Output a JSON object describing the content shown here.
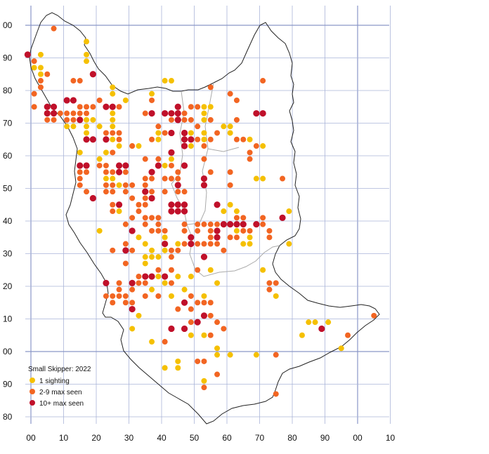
{
  "map": {
    "x_labels": [
      "00",
      "10",
      "20",
      "30",
      "40",
      "50",
      "60",
      "70",
      "80",
      "90",
      "00",
      "10"
    ],
    "y_labels": [
      "00",
      "90",
      "80",
      "70",
      "60",
      "50",
      "40",
      "30",
      "20",
      "10",
      "00",
      "90",
      "80"
    ],
    "legend": {
      "title": "Small Skipper:  2022",
      "items": [
        {
          "label": "1 sighting",
          "color": "#f5c000"
        },
        {
          "label": "2-9 max seen",
          "color": "#f26522"
        },
        {
          "label": "10+ max seen",
          "color": "#c0102a"
        }
      ]
    },
    "colors": {
      "one": "#f5c000",
      "few": "#f26522",
      "many": "#c0102a",
      "grid": "#aab4d8",
      "outline": "#222222",
      "inner_boundary": "#aaaaaa"
    },
    "records": {
      "one": [
        [
          1,
          87
        ],
        [
          3,
          91
        ],
        [
          3,
          87
        ],
        [
          3,
          85
        ],
        [
          17,
          95
        ],
        [
          17,
          91
        ],
        [
          17,
          89
        ],
        [
          15,
          71
        ],
        [
          11,
          69
        ],
        [
          13,
          69
        ],
        [
          19,
          71
        ],
        [
          15,
          61
        ],
        [
          17,
          69
        ],
        [
          17,
          67
        ],
        [
          17,
          71
        ],
        [
          25,
          71
        ],
        [
          25,
          73
        ],
        [
          25,
          69
        ],
        [
          25,
          79
        ],
        [
          25,
          81
        ],
        [
          29,
          77
        ],
        [
          21,
          59
        ],
        [
          23,
          53
        ],
        [
          25,
          53
        ],
        [
          27,
          55
        ],
        [
          25,
          65
        ],
        [
          37,
          79
        ],
        [
          41,
          83
        ],
        [
          43,
          83
        ],
        [
          39,
          67
        ],
        [
          39,
          65
        ],
        [
          43,
          59
        ],
        [
          41,
          57
        ],
        [
          33,
          63
        ],
        [
          31,
          63
        ],
        [
          27,
          63
        ],
        [
          49,
          67
        ],
        [
          49,
          65
        ],
        [
          49,
          63
        ],
        [
          53,
          75
        ],
        [
          55,
          75
        ],
        [
          53,
          73
        ],
        [
          53,
          71
        ],
        [
          53,
          67
        ],
        [
          53,
          65
        ],
        [
          59,
          69
        ],
        [
          61,
          69
        ],
        [
          61,
          67
        ],
        [
          59,
          43
        ],
        [
          61,
          45
        ],
        [
          67,
          65
        ],
        [
          71,
          63
        ],
        [
          69,
          53
        ],
        [
          71,
          53
        ],
        [
          79,
          43
        ],
        [
          79,
          33
        ],
        [
          61,
          39
        ],
        [
          63,
          37
        ],
        [
          65,
          33
        ],
        [
          67,
          33
        ],
        [
          67,
          35
        ],
        [
          63,
          43
        ],
        [
          21,
          37
        ],
        [
          33,
          35
        ],
        [
          35,
          33
        ],
        [
          37,
          31
        ],
        [
          41,
          35
        ],
        [
          41,
          31
        ],
        [
          45,
          33
        ],
        [
          35,
          27
        ],
        [
          35,
          29
        ],
        [
          37,
          29
        ],
        [
          39,
          29
        ],
        [
          41,
          21
        ],
        [
          47,
          19
        ],
        [
          45,
          23
        ],
        [
          49,
          23
        ],
        [
          37,
          19
        ],
        [
          33,
          11
        ],
        [
          31,
          13
        ],
        [
          31,
          7
        ],
        [
          37,
          3
        ],
        [
          41,
          -5
        ],
        [
          45,
          -3
        ],
        [
          45,
          -5
        ],
        [
          53,
          -9
        ],
        [
          49,
          5
        ],
        [
          53,
          5
        ],
        [
          57,
          1
        ],
        [
          57,
          -1
        ],
        [
          61,
          -1
        ],
        [
          69,
          -1
        ],
        [
          71,
          25
        ],
        [
          85,
          9
        ],
        [
          87,
          9
        ],
        [
          91,
          9
        ],
        [
          95,
          1
        ],
        [
          83,
          5
        ],
        [
          43,
          17
        ],
        [
          53,
          17
        ],
        [
          75,
          17
        ],
        [
          23,
          61
        ],
        [
          27,
          51
        ],
        [
          27,
          43
        ],
        [
          21,
          69
        ],
        [
          55,
          25
        ],
        [
          57,
          21
        ],
        [
          39,
          23
        ]
      ],
      "few": [
        [
          5,
          85
        ],
        [
          3,
          83
        ],
        [
          3,
          81
        ],
        [
          1,
          79
        ],
        [
          1,
          75
        ],
        [
          5,
          75
        ],
        [
          5,
          73
        ],
        [
          5,
          71
        ],
        [
          7,
          71
        ],
        [
          9,
          73
        ],
        [
          11,
          73
        ],
        [
          13,
          73
        ],
        [
          15,
          73
        ],
        [
          11,
          71
        ],
        [
          13,
          71
        ],
        [
          15,
          75
        ],
        [
          17,
          73
        ],
        [
          17,
          75
        ],
        [
          19,
          75
        ],
        [
          7,
          99
        ],
        [
          13,
          83
        ],
        [
          15,
          83
        ],
        [
          1,
          89
        ],
        [
          21,
          77
        ],
        [
          25,
          75
        ],
        [
          27,
          75
        ],
        [
          23,
          67
        ],
        [
          25,
          67
        ],
        [
          27,
          67
        ],
        [
          15,
          57
        ],
        [
          15,
          55
        ],
        [
          15,
          53
        ],
        [
          17,
          49
        ],
        [
          23,
          57
        ],
        [
          25,
          55
        ],
        [
          23,
          55
        ],
        [
          23,
          51
        ],
        [
          23,
          49
        ],
        [
          25,
          51
        ],
        [
          25,
          49
        ],
        [
          25,
          61
        ],
        [
          29,
          55
        ],
        [
          29,
          51
        ],
        [
          29,
          49
        ],
        [
          31,
          51
        ],
        [
          31,
          47
        ],
        [
          25,
          43
        ],
        [
          25,
          45
        ],
        [
          29,
          39
        ],
        [
          31,
          41
        ],
        [
          33,
          43
        ],
        [
          35,
          41
        ],
        [
          37,
          41
        ],
        [
          31,
          37
        ],
        [
          35,
          39
        ],
        [
          39,
          39
        ],
        [
          39,
          41
        ],
        [
          37,
          37
        ],
        [
          39,
          37
        ],
        [
          41,
          37
        ],
        [
          35,
          47
        ],
        [
          33,
          45
        ],
        [
          35,
          45
        ],
        [
          37,
          47
        ],
        [
          37,
          49
        ],
        [
          35,
          51
        ],
        [
          35,
          53
        ],
        [
          37,
          53
        ],
        [
          35,
          59
        ],
        [
          39,
          59
        ],
        [
          41,
          53
        ],
        [
          43,
          53
        ],
        [
          45,
          53
        ],
        [
          43,
          57
        ],
        [
          45,
          55
        ],
        [
          41,
          49
        ],
        [
          45,
          49
        ],
        [
          47,
          49
        ],
        [
          37,
          73
        ],
        [
          37,
          77
        ],
        [
          35,
          73
        ],
        [
          31,
          63
        ],
        [
          37,
          65
        ],
        [
          41,
          67
        ],
        [
          39,
          69
        ],
        [
          43,
          71
        ],
        [
          43,
          73
        ],
        [
          47,
          73
        ],
        [
          47,
          71
        ],
        [
          49,
          71
        ],
        [
          49,
          75
        ],
        [
          51,
          75
        ],
        [
          51,
          69
        ],
        [
          55,
          71
        ],
        [
          51,
          65
        ],
        [
          53,
          63
        ],
        [
          55,
          55
        ],
        [
          53,
          59
        ],
        [
          55,
          65
        ],
        [
          57,
          67
        ],
        [
          55,
          81
        ],
        [
          61,
          79
        ],
        [
          63,
          77
        ],
        [
          63,
          71
        ],
        [
          63,
          65
        ],
        [
          65,
          65
        ],
        [
          61,
          55
        ],
        [
          67,
          59
        ],
        [
          61,
          51
        ],
        [
          71,
          83
        ],
        [
          69,
          63
        ],
        [
          67,
          61
        ],
        [
          77,
          53
        ],
        [
          71,
          41
        ],
        [
          71,
          39
        ],
        [
          73,
          37
        ],
        [
          73,
          35
        ],
        [
          57,
          39
        ],
        [
          59,
          39
        ],
        [
          55,
          39
        ],
        [
          53,
          39
        ],
        [
          51,
          39
        ],
        [
          51,
          37
        ],
        [
          49,
          35
        ],
        [
          51,
          33
        ],
        [
          53,
          33
        ],
        [
          55,
          33
        ],
        [
          55,
          37
        ],
        [
          57,
          37
        ],
        [
          57,
          33
        ],
        [
          59,
          31
        ],
        [
          61,
          35
        ],
        [
          63,
          41
        ],
        [
          65,
          41
        ],
        [
          65,
          37
        ],
        [
          67,
          37
        ],
        [
          29,
          33
        ],
        [
          25,
          31
        ],
        [
          27,
          21
        ],
        [
          27,
          19
        ],
        [
          27,
          17
        ],
        [
          25,
          17
        ],
        [
          23,
          17
        ],
        [
          25,
          15
        ],
        [
          29,
          15
        ],
        [
          31,
          15
        ],
        [
          29,
          17
        ],
        [
          31,
          19
        ],
        [
          35,
          21
        ],
        [
          33,
          23
        ],
        [
          39,
          25
        ],
        [
          43,
          25
        ],
        [
          43,
          31
        ],
        [
          41,
          33
        ],
        [
          43,
          29
        ],
        [
          45,
          31
        ],
        [
          47,
          33
        ],
        [
          47,
          37
        ],
        [
          47,
          39
        ],
        [
          29,
          27
        ],
        [
          51,
          25
        ],
        [
          49,
          17
        ],
        [
          49,
          13
        ],
        [
          51,
          15
        ],
        [
          53,
          15
        ],
        [
          55,
          11
        ],
        [
          51,
          9
        ],
        [
          57,
          9
        ],
        [
          59,
          7
        ],
        [
          55,
          5
        ],
        [
          51,
          -3
        ],
        [
          53,
          -3
        ],
        [
          53,
          -11
        ],
        [
          57,
          -7
        ],
        [
          73,
          21
        ],
        [
          73,
          19
        ],
        [
          75,
          21
        ],
        [
          75,
          -1
        ],
        [
          97,
          5
        ],
        [
          105,
          11
        ],
        [
          75,
          -13
        ],
        [
          43,
          21
        ],
        [
          45,
          13
        ],
        [
          35,
          17
        ],
        [
          41,
          3
        ],
        [
          39,
          17
        ],
        [
          17,
          55
        ],
        [
          15,
          51
        ],
        [
          21,
          57
        ],
        [
          27,
          65
        ],
        [
          55,
          15
        ],
        [
          49,
          9
        ],
        [
          33,
          21
        ],
        [
          31,
          31
        ],
        [
          55,
          35
        ],
        [
          63,
          35
        ]
      ],
      "many": [
        [
          -1,
          91
        ],
        [
          5,
          75
        ],
        [
          7,
          75
        ],
        [
          7,
          73
        ],
        [
          5,
          73
        ],
        [
          11,
          77
        ],
        [
          13,
          77
        ],
        [
          15,
          71
        ],
        [
          17,
          65
        ],
        [
          19,
          65
        ],
        [
          19,
          85
        ],
        [
          17,
          57
        ],
        [
          15,
          57
        ],
        [
          19,
          47
        ],
        [
          23,
          75
        ],
        [
          25,
          75
        ],
        [
          23,
          65
        ],
        [
          27,
          57
        ],
        [
          29,
          57
        ],
        [
          27,
          55
        ],
        [
          35,
          49
        ],
        [
          37,
          55
        ],
        [
          43,
          67
        ],
        [
          45,
          73
        ],
        [
          45,
          75
        ],
        [
          43,
          73
        ],
        [
          47,
          67
        ],
        [
          47,
          65
        ],
        [
          49,
          65
        ],
        [
          43,
          61
        ],
        [
          47,
          63
        ],
        [
          45,
          71
        ],
        [
          47,
          57
        ],
        [
          45,
          51
        ],
        [
          43,
          45
        ],
        [
          43,
          43
        ],
        [
          45,
          45
        ],
        [
          45,
          43
        ],
        [
          47,
          45
        ],
        [
          47,
          43
        ],
        [
          53,
          53
        ],
        [
          53,
          51
        ],
        [
          53,
          29
        ],
        [
          49,
          35
        ],
        [
          49,
          33
        ],
        [
          57,
          45
        ],
        [
          57,
          37
        ],
        [
          57,
          35
        ],
        [
          59,
          39
        ],
        [
          61,
          39
        ],
        [
          63,
          39
        ],
        [
          65,
          39
        ],
        [
          69,
          39
        ],
        [
          71,
          73
        ],
        [
          69,
          73
        ],
        [
          77,
          41
        ],
        [
          27,
          45
        ],
        [
          29,
          31
        ],
        [
          31,
          37
        ],
        [
          31,
          21
        ],
        [
          35,
          23
        ],
        [
          37,
          23
        ],
        [
          41,
          23
        ],
        [
          41,
          33
        ],
        [
          23,
          21
        ],
        [
          47,
          15
        ],
        [
          43,
          7
        ],
        [
          47,
          7
        ],
        [
          51,
          9
        ],
        [
          53,
          11
        ],
        [
          89,
          7
        ],
        [
          31,
          13
        ],
        [
          37,
          47
        ],
        [
          39,
          57
        ],
        [
          37,
          73
        ],
        [
          41,
          73
        ],
        [
          45,
          71
        ]
      ]
    }
  }
}
